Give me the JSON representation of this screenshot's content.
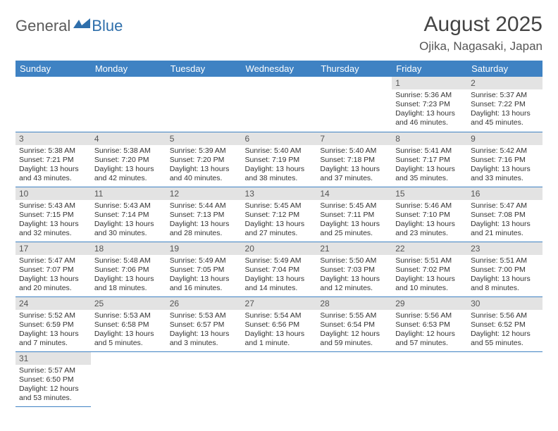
{
  "logo": {
    "part1": "General",
    "part2": "Blue"
  },
  "title": "August 2025",
  "location": "Ojika, Nagasaki, Japan",
  "colors": {
    "header_bg": "#3f82c3",
    "header_text": "#ffffff",
    "daynum_bg": "#e3e3e3",
    "cell_border": "#3f82c3",
    "logo_gray": "#5a5a5a",
    "logo_blue": "#2f6fab"
  },
  "dow": [
    "Sunday",
    "Monday",
    "Tuesday",
    "Wednesday",
    "Thursday",
    "Friday",
    "Saturday"
  ],
  "weeks": [
    [
      null,
      null,
      null,
      null,
      null,
      {
        "n": "1",
        "sr": "5:36 AM",
        "ss": "7:23 PM",
        "dl": "13 hours and 46 minutes."
      },
      {
        "n": "2",
        "sr": "5:37 AM",
        "ss": "7:22 PM",
        "dl": "13 hours and 45 minutes."
      }
    ],
    [
      {
        "n": "3",
        "sr": "5:38 AM",
        "ss": "7:21 PM",
        "dl": "13 hours and 43 minutes."
      },
      {
        "n": "4",
        "sr": "5:38 AM",
        "ss": "7:20 PM",
        "dl": "13 hours and 42 minutes."
      },
      {
        "n": "5",
        "sr": "5:39 AM",
        "ss": "7:20 PM",
        "dl": "13 hours and 40 minutes."
      },
      {
        "n": "6",
        "sr": "5:40 AM",
        "ss": "7:19 PM",
        "dl": "13 hours and 38 minutes."
      },
      {
        "n": "7",
        "sr": "5:40 AM",
        "ss": "7:18 PM",
        "dl": "13 hours and 37 minutes."
      },
      {
        "n": "8",
        "sr": "5:41 AM",
        "ss": "7:17 PM",
        "dl": "13 hours and 35 minutes."
      },
      {
        "n": "9",
        "sr": "5:42 AM",
        "ss": "7:16 PM",
        "dl": "13 hours and 33 minutes."
      }
    ],
    [
      {
        "n": "10",
        "sr": "5:43 AM",
        "ss": "7:15 PM",
        "dl": "13 hours and 32 minutes."
      },
      {
        "n": "11",
        "sr": "5:43 AM",
        "ss": "7:14 PM",
        "dl": "13 hours and 30 minutes."
      },
      {
        "n": "12",
        "sr": "5:44 AM",
        "ss": "7:13 PM",
        "dl": "13 hours and 28 minutes."
      },
      {
        "n": "13",
        "sr": "5:45 AM",
        "ss": "7:12 PM",
        "dl": "13 hours and 27 minutes."
      },
      {
        "n": "14",
        "sr": "5:45 AM",
        "ss": "7:11 PM",
        "dl": "13 hours and 25 minutes."
      },
      {
        "n": "15",
        "sr": "5:46 AM",
        "ss": "7:10 PM",
        "dl": "13 hours and 23 minutes."
      },
      {
        "n": "16",
        "sr": "5:47 AM",
        "ss": "7:08 PM",
        "dl": "13 hours and 21 minutes."
      }
    ],
    [
      {
        "n": "17",
        "sr": "5:47 AM",
        "ss": "7:07 PM",
        "dl": "13 hours and 20 minutes."
      },
      {
        "n": "18",
        "sr": "5:48 AM",
        "ss": "7:06 PM",
        "dl": "13 hours and 18 minutes."
      },
      {
        "n": "19",
        "sr": "5:49 AM",
        "ss": "7:05 PM",
        "dl": "13 hours and 16 minutes."
      },
      {
        "n": "20",
        "sr": "5:49 AM",
        "ss": "7:04 PM",
        "dl": "13 hours and 14 minutes."
      },
      {
        "n": "21",
        "sr": "5:50 AM",
        "ss": "7:03 PM",
        "dl": "13 hours and 12 minutes."
      },
      {
        "n": "22",
        "sr": "5:51 AM",
        "ss": "7:02 PM",
        "dl": "13 hours and 10 minutes."
      },
      {
        "n": "23",
        "sr": "5:51 AM",
        "ss": "7:00 PM",
        "dl": "13 hours and 8 minutes."
      }
    ],
    [
      {
        "n": "24",
        "sr": "5:52 AM",
        "ss": "6:59 PM",
        "dl": "13 hours and 7 minutes."
      },
      {
        "n": "25",
        "sr": "5:53 AM",
        "ss": "6:58 PM",
        "dl": "13 hours and 5 minutes."
      },
      {
        "n": "26",
        "sr": "5:53 AM",
        "ss": "6:57 PM",
        "dl": "13 hours and 3 minutes."
      },
      {
        "n": "27",
        "sr": "5:54 AM",
        "ss": "6:56 PM",
        "dl": "13 hours and 1 minute."
      },
      {
        "n": "28",
        "sr": "5:55 AM",
        "ss": "6:54 PM",
        "dl": "12 hours and 59 minutes."
      },
      {
        "n": "29",
        "sr": "5:56 AM",
        "ss": "6:53 PM",
        "dl": "12 hours and 57 minutes."
      },
      {
        "n": "30",
        "sr": "5:56 AM",
        "ss": "6:52 PM",
        "dl": "12 hours and 55 minutes."
      }
    ],
    [
      {
        "n": "31",
        "sr": "5:57 AM",
        "ss": "6:50 PM",
        "dl": "12 hours and 53 minutes."
      },
      null,
      null,
      null,
      null,
      null,
      null
    ]
  ],
  "labels": {
    "sunrise": "Sunrise:",
    "sunset": "Sunset:",
    "daylight": "Daylight:"
  }
}
